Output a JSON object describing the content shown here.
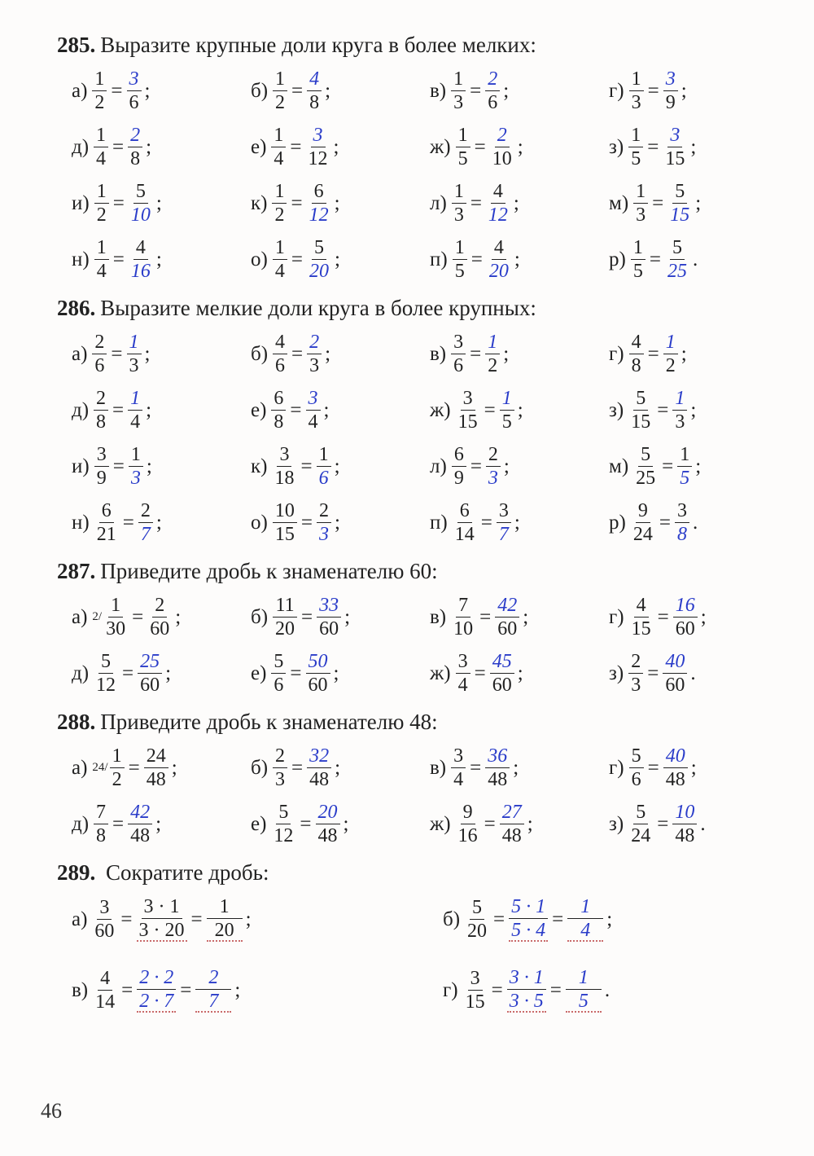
{
  "page_number": "46",
  "problems": [
    {
      "number": "285.",
      "title": "Выразите крупные доли круга в более мелких:",
      "cols": 4,
      "items": [
        {
          "label": "а)",
          "lhs_n": "1",
          "lhs_d": "2",
          "rhs_n": "3",
          "rhs_d": "6",
          "rhs_n_hw": true,
          "rhs_d_hw": false,
          "punct": ";"
        },
        {
          "label": "б)",
          "lhs_n": "1",
          "lhs_d": "2",
          "rhs_n": "4",
          "rhs_d": "8",
          "rhs_n_hw": true,
          "rhs_d_hw": false,
          "punct": ";"
        },
        {
          "label": "в)",
          "lhs_n": "1",
          "lhs_d": "3",
          "rhs_n": "2",
          "rhs_d": "6",
          "rhs_n_hw": true,
          "rhs_d_hw": false,
          "punct": ";"
        },
        {
          "label": "г)",
          "lhs_n": "1",
          "lhs_d": "3",
          "rhs_n": "3",
          "rhs_d": "9",
          "rhs_n_hw": true,
          "rhs_d_hw": false,
          "punct": ";"
        },
        {
          "label": "д)",
          "lhs_n": "1",
          "lhs_d": "4",
          "rhs_n": "2",
          "rhs_d": "8",
          "rhs_n_hw": true,
          "rhs_d_hw": false,
          "punct": ";"
        },
        {
          "label": "е)",
          "lhs_n": "1",
          "lhs_d": "4",
          "rhs_n": "3",
          "rhs_d": "12",
          "rhs_n_hw": true,
          "rhs_d_hw": false,
          "punct": ";"
        },
        {
          "label": "ж)",
          "lhs_n": "1",
          "lhs_d": "5",
          "rhs_n": "2",
          "rhs_d": "10",
          "rhs_n_hw": true,
          "rhs_d_hw": false,
          "punct": ";"
        },
        {
          "label": "з)",
          "lhs_n": "1",
          "lhs_d": "5",
          "rhs_n": "3",
          "rhs_d": "15",
          "rhs_n_hw": true,
          "rhs_d_hw": false,
          "punct": ";"
        },
        {
          "label": "и)",
          "lhs_n": "1",
          "lhs_d": "2",
          "rhs_n": "5",
          "rhs_d": "10",
          "rhs_n_hw": false,
          "rhs_d_hw": true,
          "punct": ";"
        },
        {
          "label": "к)",
          "lhs_n": "1",
          "lhs_d": "2",
          "rhs_n": "6",
          "rhs_d": "12",
          "rhs_n_hw": false,
          "rhs_d_hw": true,
          "punct": ";"
        },
        {
          "label": "л)",
          "lhs_n": "1",
          "lhs_d": "3",
          "rhs_n": "4",
          "rhs_d": "12",
          "rhs_n_hw": false,
          "rhs_d_hw": true,
          "punct": ";"
        },
        {
          "label": "м)",
          "lhs_n": "1",
          "lhs_d": "3",
          "rhs_n": "5",
          "rhs_d": "15",
          "rhs_n_hw": false,
          "rhs_d_hw": true,
          "punct": ";"
        },
        {
          "label": "н)",
          "lhs_n": "1",
          "lhs_d": "4",
          "rhs_n": "4",
          "rhs_d": "16",
          "rhs_n_hw": false,
          "rhs_d_hw": true,
          "punct": ";"
        },
        {
          "label": "о)",
          "lhs_n": "1",
          "lhs_d": "4",
          "rhs_n": "5",
          "rhs_d": "20",
          "rhs_n_hw": false,
          "rhs_d_hw": true,
          "punct": ";"
        },
        {
          "label": "п)",
          "lhs_n": "1",
          "lhs_d": "5",
          "rhs_n": "4",
          "rhs_d": "20",
          "rhs_n_hw": false,
          "rhs_d_hw": true,
          "punct": ";"
        },
        {
          "label": "р)",
          "lhs_n": "1",
          "lhs_d": "5",
          "rhs_n": "5",
          "rhs_d": "25",
          "rhs_n_hw": false,
          "rhs_d_hw": true,
          "punct": "."
        }
      ]
    },
    {
      "number": "286.",
      "title": "Выразите мелкие доли круга в более крупных:",
      "cols": 4,
      "items": [
        {
          "label": "а)",
          "lhs_n": "2",
          "lhs_d": "6",
          "rhs_n": "1",
          "rhs_d": "3",
          "rhs_n_hw": true,
          "rhs_d_hw": false,
          "punct": ";"
        },
        {
          "label": "б)",
          "lhs_n": "4",
          "lhs_d": "6",
          "rhs_n": "2",
          "rhs_d": "3",
          "rhs_n_hw": true,
          "rhs_d_hw": false,
          "punct": ";"
        },
        {
          "label": "в)",
          "lhs_n": "3",
          "lhs_d": "6",
          "rhs_n": "1",
          "rhs_d": "2",
          "rhs_n_hw": true,
          "rhs_d_hw": false,
          "punct": ";"
        },
        {
          "label": "г)",
          "lhs_n": "4",
          "lhs_d": "8",
          "rhs_n": "1",
          "rhs_d": "2",
          "rhs_n_hw": true,
          "rhs_d_hw": false,
          "punct": ";"
        },
        {
          "label": "д)",
          "lhs_n": "2",
          "lhs_d": "8",
          "rhs_n": "1",
          "rhs_d": "4",
          "rhs_n_hw": true,
          "rhs_d_hw": false,
          "punct": ";"
        },
        {
          "label": "е)",
          "lhs_n": "6",
          "lhs_d": "8",
          "rhs_n": "3",
          "rhs_d": "4",
          "rhs_n_hw": true,
          "rhs_d_hw": false,
          "punct": ";"
        },
        {
          "label": "ж)",
          "lhs_n": "3",
          "lhs_d": "15",
          "rhs_n": "1",
          "rhs_d": "5",
          "rhs_n_hw": true,
          "rhs_d_hw": false,
          "punct": ";"
        },
        {
          "label": "з)",
          "lhs_n": "5",
          "lhs_d": "15",
          "rhs_n": "1",
          "rhs_d": "3",
          "rhs_n_hw": true,
          "rhs_d_hw": false,
          "punct": ";"
        },
        {
          "label": "и)",
          "lhs_n": "3",
          "lhs_d": "9",
          "rhs_n": "1",
          "rhs_d": "3",
          "rhs_n_hw": false,
          "rhs_d_hw": true,
          "punct": ";"
        },
        {
          "label": "к)",
          "lhs_n": "3",
          "lhs_d": "18",
          "rhs_n": "1",
          "rhs_d": "6",
          "rhs_n_hw": false,
          "rhs_d_hw": true,
          "punct": ";"
        },
        {
          "label": "л)",
          "lhs_n": "6",
          "lhs_d": "9",
          "rhs_n": "2",
          "rhs_d": "3",
          "rhs_n_hw": false,
          "rhs_d_hw": true,
          "punct": ";"
        },
        {
          "label": "м)",
          "lhs_n": "5",
          "lhs_d": "25",
          "rhs_n": "1",
          "rhs_d": "5",
          "rhs_n_hw": false,
          "rhs_d_hw": true,
          "punct": ";"
        },
        {
          "label": "н)",
          "lhs_n": "6",
          "lhs_d": "21",
          "rhs_n": "2",
          "rhs_d": "7",
          "rhs_n_hw": false,
          "rhs_d_hw": true,
          "punct": ";"
        },
        {
          "label": "о)",
          "lhs_n": "10",
          "lhs_d": "15",
          "rhs_n": "2",
          "rhs_d": "3",
          "rhs_n_hw": false,
          "rhs_d_hw": true,
          "punct": ";"
        },
        {
          "label": "п)",
          "lhs_n": "6",
          "lhs_d": "14",
          "rhs_n": "3",
          "rhs_d": "7",
          "rhs_n_hw": false,
          "rhs_d_hw": true,
          "punct": ";"
        },
        {
          "label": "р)",
          "lhs_n": "9",
          "lhs_d": "24",
          "rhs_n": "3",
          "rhs_d": "8",
          "rhs_n_hw": false,
          "rhs_d_hw": true,
          "punct": "."
        }
      ]
    },
    {
      "number": "287.",
      "title": "Приведите дробь к знаменателю 60:",
      "cols": 4,
      "items": [
        {
          "label": "а)",
          "sup": "2/",
          "lhs_n": "1",
          "lhs_d": "30",
          "rhs_n": "2",
          "rhs_d": "60",
          "rhs_n_hw": false,
          "rhs_d_hw": false,
          "punct": ";"
        },
        {
          "label": "б)",
          "lhs_n": "11",
          "lhs_d": "20",
          "rhs_n": "33",
          "rhs_d": "60",
          "rhs_n_hw": true,
          "rhs_d_hw": false,
          "punct": ";"
        },
        {
          "label": "в)",
          "lhs_n": "7",
          "lhs_d": "10",
          "rhs_n": "42",
          "rhs_d": "60",
          "rhs_n_hw": true,
          "rhs_d_hw": false,
          "punct": ";"
        },
        {
          "label": "г)",
          "lhs_n": "4",
          "lhs_d": "15",
          "rhs_n": "16",
          "rhs_d": "60",
          "rhs_n_hw": true,
          "rhs_d_hw": false,
          "punct": ";"
        },
        {
          "label": "д)",
          "lhs_n": "5",
          "lhs_d": "12",
          "rhs_n": "25",
          "rhs_d": "60",
          "rhs_n_hw": true,
          "rhs_d_hw": false,
          "punct": ";"
        },
        {
          "label": "е)",
          "lhs_n": "5",
          "lhs_d": "6",
          "rhs_n": "50",
          "rhs_d": "60",
          "rhs_n_hw": true,
          "rhs_d_hw": false,
          "punct": ";"
        },
        {
          "label": "ж)",
          "lhs_n": "3",
          "lhs_d": "4",
          "rhs_n": "45",
          "rhs_d": "60",
          "rhs_n_hw": true,
          "rhs_d_hw": false,
          "punct": ";"
        },
        {
          "label": "з)",
          "lhs_n": "2",
          "lhs_d": "3",
          "rhs_n": "40",
          "rhs_d": "60",
          "rhs_n_hw": true,
          "rhs_d_hw": false,
          "punct": "."
        }
      ]
    },
    {
      "number": "288.",
      "title": "Приведите дробь к знаменателю 48:",
      "cols": 4,
      "items": [
        {
          "label": "а)",
          "sup": "24/",
          "lhs_n": "1",
          "lhs_d": "2",
          "rhs_n": "24",
          "rhs_d": "48",
          "rhs_n_hw": false,
          "rhs_d_hw": false,
          "punct": ";"
        },
        {
          "label": "б)",
          "lhs_n": "2",
          "lhs_d": "3",
          "rhs_n": "32",
          "rhs_d": "48",
          "rhs_n_hw": true,
          "rhs_d_hw": false,
          "punct": ";"
        },
        {
          "label": "в)",
          "lhs_n": "3",
          "lhs_d": "4",
          "rhs_n": "36",
          "rhs_d": "48",
          "rhs_n_hw": true,
          "rhs_d_hw": false,
          "punct": ";"
        },
        {
          "label": "г)",
          "lhs_n": "5",
          "lhs_d": "6",
          "rhs_n": "40",
          "rhs_d": "48",
          "rhs_n_hw": true,
          "rhs_d_hw": false,
          "punct": ";"
        },
        {
          "label": "д)",
          "lhs_n": "7",
          "lhs_d": "8",
          "rhs_n": "42",
          "rhs_d": "48",
          "rhs_n_hw": true,
          "rhs_d_hw": false,
          "punct": ";"
        },
        {
          "label": "е)",
          "lhs_n": "5",
          "lhs_d": "12",
          "rhs_n": "20",
          "rhs_d": "48",
          "rhs_n_hw": true,
          "rhs_d_hw": false,
          "punct": ";"
        },
        {
          "label": "ж)",
          "lhs_n": "9",
          "lhs_d": "16",
          "rhs_n": "27",
          "rhs_d": "48",
          "rhs_n_hw": true,
          "rhs_d_hw": false,
          "punct": ";"
        },
        {
          "label": "з)",
          "lhs_n": "5",
          "lhs_d": "24",
          "rhs_n": "10",
          "rhs_d": "48",
          "rhs_n_hw": true,
          "rhs_d_hw": false,
          "punct": "."
        }
      ]
    }
  ],
  "problem289": {
    "number": "289.",
    "title": "Сократите дробь:",
    "items": [
      {
        "label": "а)",
        "f1_n": "3",
        "f1_d": "60",
        "f2_n": "3 · 1",
        "f2_d": "3 · 20",
        "f3_n": "1",
        "f3_d": "20",
        "hw": false,
        "punct": ";"
      },
      {
        "label": "б)",
        "f1_n": "5",
        "f1_d": "20",
        "f2_n": "5 · 1",
        "f2_d": "5 · 4",
        "f3_n": "1",
        "f3_d": "4",
        "hw": true,
        "punct": ";"
      },
      {
        "label": "в)",
        "f1_n": "4",
        "f1_d": "14",
        "f2_n": "2 · 2",
        "f2_d": "2 · 7",
        "f3_n": "2",
        "f3_d": "7",
        "hw": true,
        "punct": ";"
      },
      {
        "label": "г)",
        "f1_n": "3",
        "f1_d": "15",
        "f2_n": "3 · 1",
        "f2_d": "3 · 5",
        "f3_n": "1",
        "f3_d": "5",
        "hw": true,
        "punct": "."
      }
    ]
  },
  "colors": {
    "text": "#222222",
    "handwriting": "#2a3cc9",
    "dotted": "#c96a6a",
    "background": "#fdfcfb"
  }
}
